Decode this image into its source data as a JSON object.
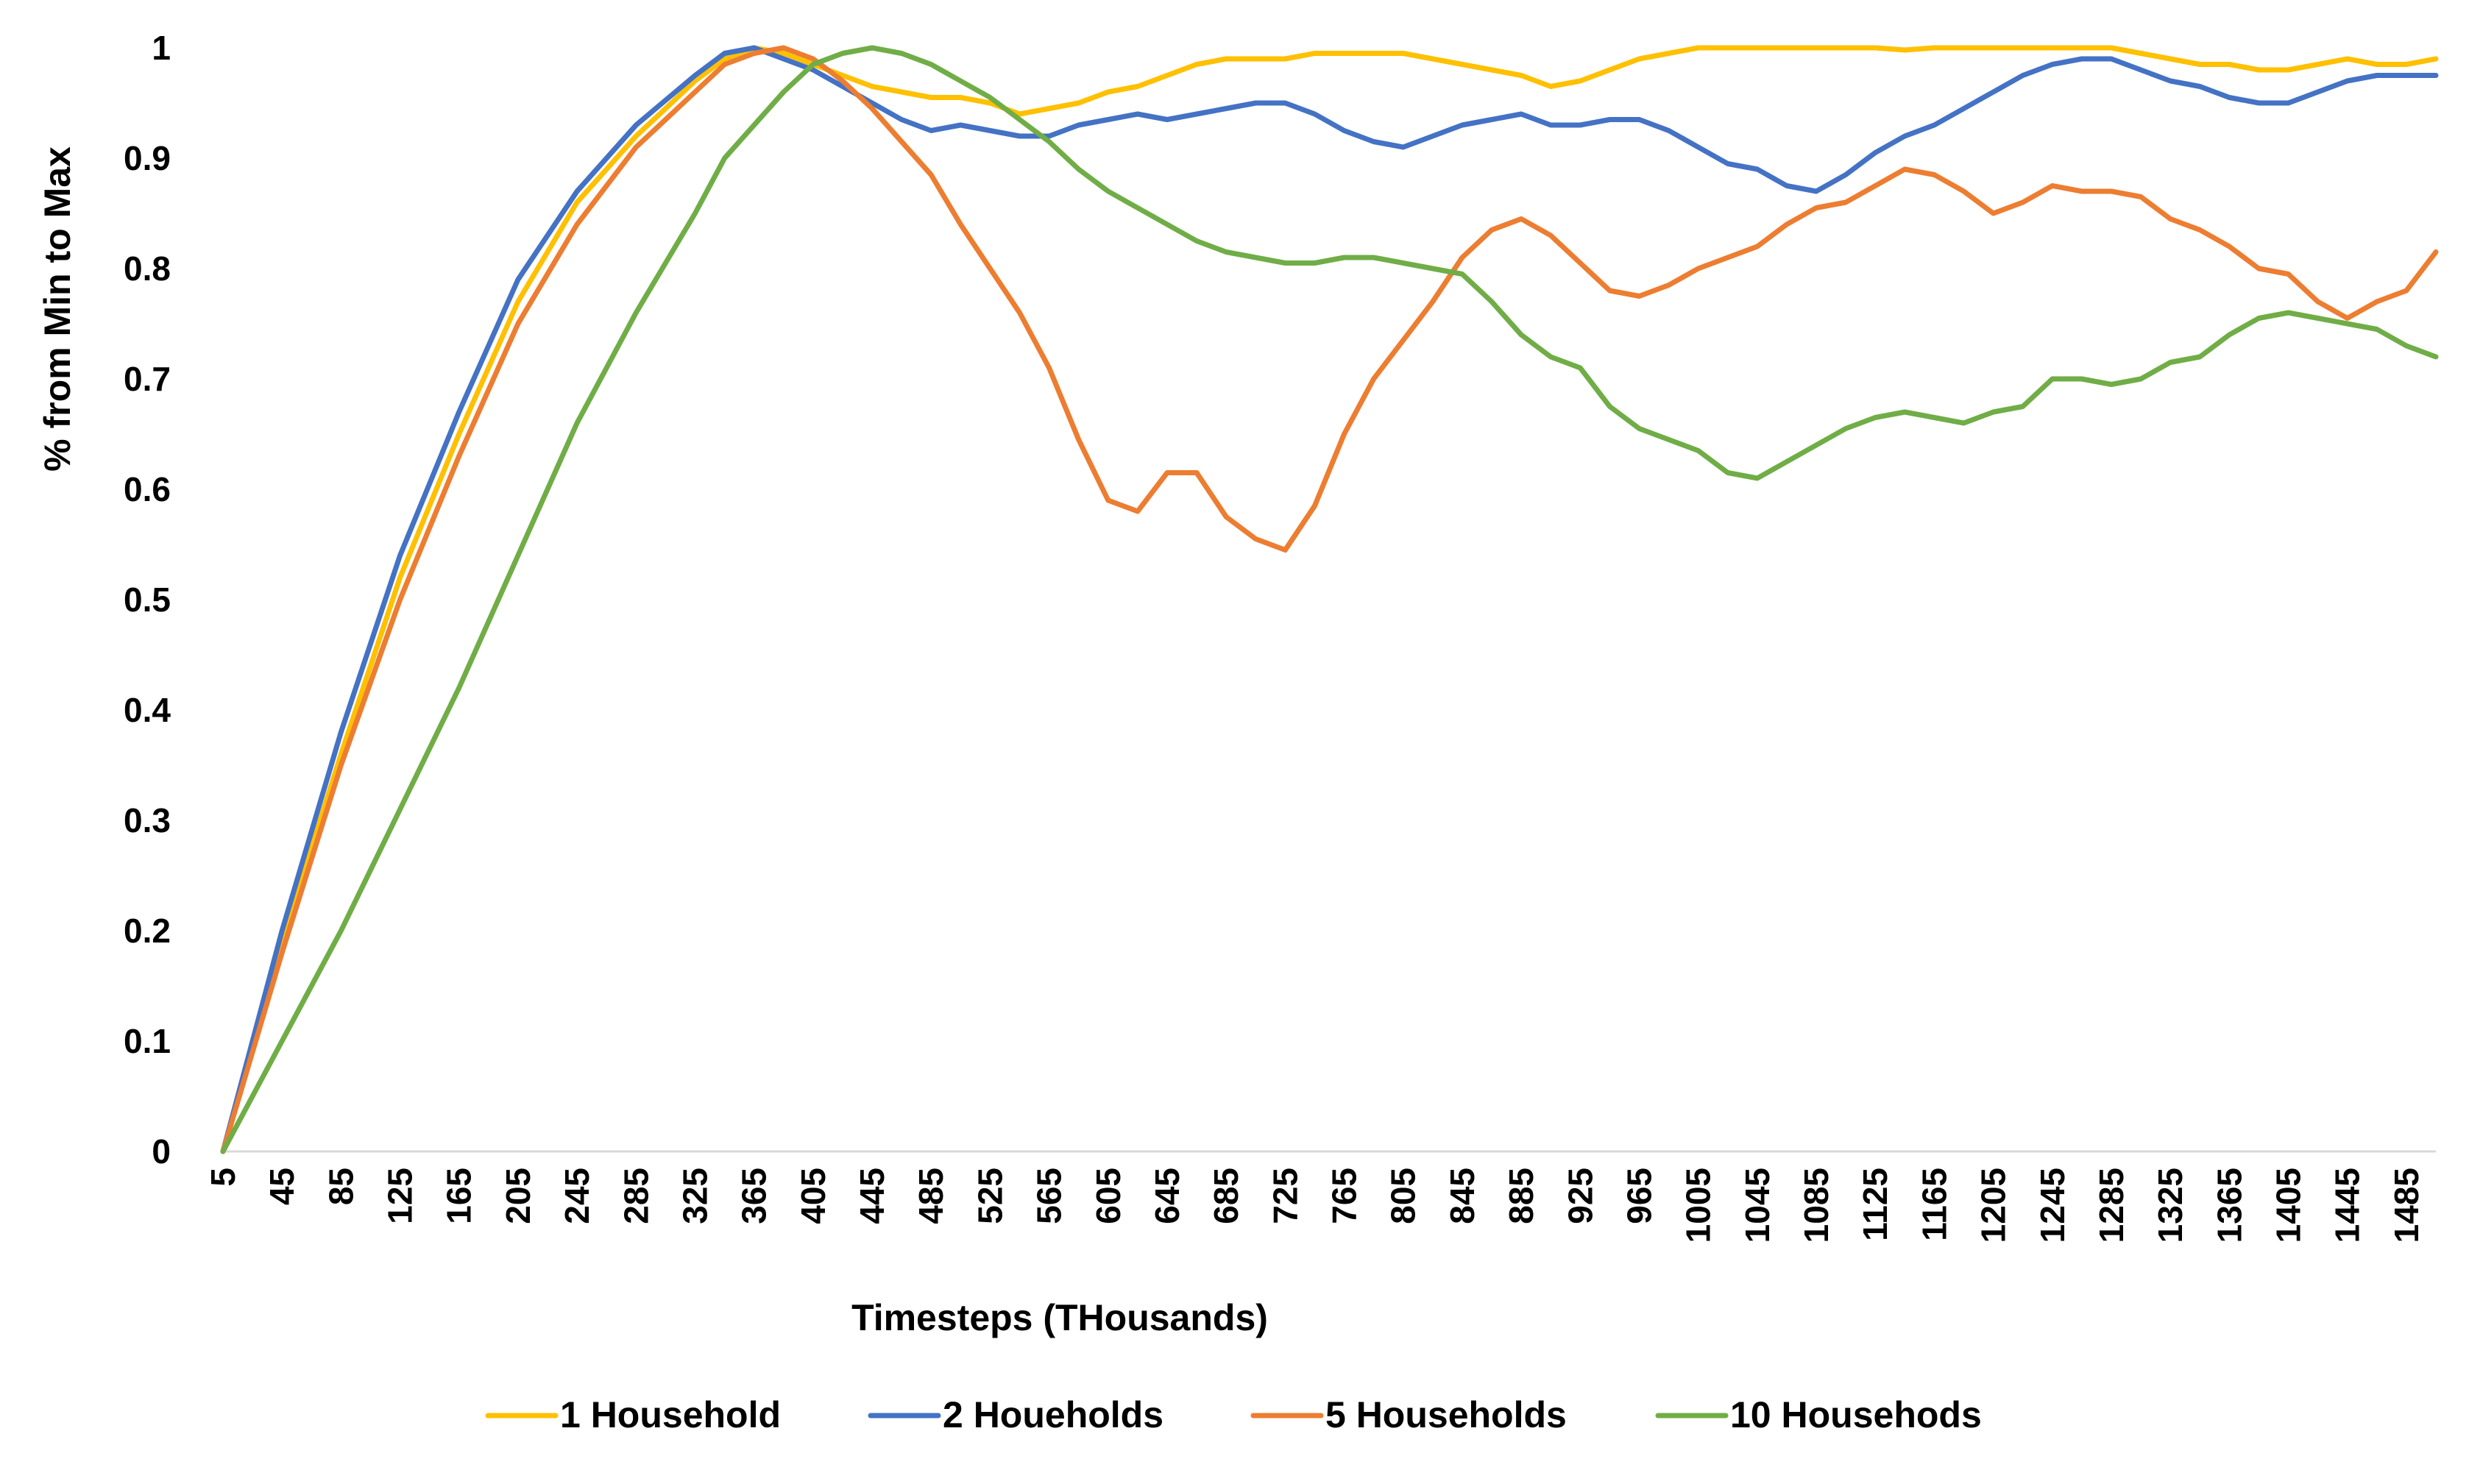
{
  "chart_data": {
    "type": "line",
    "title": "",
    "xlabel": "Timesteps (THousands)",
    "ylabel": "% from Min to Max",
    "xlim": [
      5,
      1505
    ],
    "ylim": [
      0,
      1
    ],
    "x_ticks": [
      "5",
      "45",
      "85",
      "125",
      "165",
      "205",
      "245",
      "285",
      "325",
      "365",
      "405",
      "445",
      "485",
      "525",
      "565",
      "605",
      "645",
      "685",
      "725",
      "765",
      "805",
      "845",
      "885",
      "925",
      "965",
      "1005",
      "1045",
      "1085",
      "1125",
      "1165",
      "1205",
      "1245",
      "1285",
      "1325",
      "1365",
      "1405",
      "1445",
      "1485"
    ],
    "y_ticks": [
      "0",
      "0.1",
      "0.2",
      "0.3",
      "0.4",
      "0.5",
      "0.6",
      "0.7",
      "0.8",
      "0.9",
      "1"
    ],
    "grid": false,
    "legend_position": "bottom",
    "series": [
      {
        "name": "1 Household",
        "color": "#FFC000",
        "points": [
          [
            5,
            0
          ],
          [
            45,
            0.19
          ],
          [
            85,
            0.36
          ],
          [
            125,
            0.52
          ],
          [
            165,
            0.65
          ],
          [
            205,
            0.77
          ],
          [
            245,
            0.86
          ],
          [
            285,
            0.92
          ],
          [
            325,
            0.97
          ],
          [
            345,
            0.99
          ],
          [
            365,
            1.0
          ],
          [
            385,
            0.995
          ],
          [
            405,
            0.985
          ],
          [
            425,
            0.975
          ],
          [
            445,
            0.965
          ],
          [
            465,
            0.96
          ],
          [
            485,
            0.955
          ],
          [
            505,
            0.955
          ],
          [
            525,
            0.95
          ],
          [
            545,
            0.94
          ],
          [
            565,
            0.945
          ],
          [
            585,
            0.95
          ],
          [
            605,
            0.96
          ],
          [
            625,
            0.965
          ],
          [
            645,
            0.975
          ],
          [
            665,
            0.985
          ],
          [
            685,
            0.99
          ],
          [
            705,
            0.99
          ],
          [
            725,
            0.99
          ],
          [
            745,
            0.995
          ],
          [
            765,
            0.995
          ],
          [
            785,
            0.995
          ],
          [
            805,
            0.995
          ],
          [
            825,
            0.99
          ],
          [
            845,
            0.985
          ],
          [
            865,
            0.98
          ],
          [
            885,
            0.975
          ],
          [
            905,
            0.965
          ],
          [
            925,
            0.97
          ],
          [
            945,
            0.98
          ],
          [
            965,
            0.99
          ],
          [
            985,
            0.995
          ],
          [
            1005,
            1.0
          ],
          [
            1025,
            1.0
          ],
          [
            1045,
            1.0
          ],
          [
            1065,
            1.0
          ],
          [
            1085,
            1.0
          ],
          [
            1105,
            1.0
          ],
          [
            1125,
            1.0
          ],
          [
            1145,
            0.998
          ],
          [
            1165,
            1.0
          ],
          [
            1185,
            1.0
          ],
          [
            1205,
            1.0
          ],
          [
            1225,
            1.0
          ],
          [
            1245,
            1.0
          ],
          [
            1265,
            1.0
          ],
          [
            1285,
            1.0
          ],
          [
            1305,
            0.995
          ],
          [
            1325,
            0.99
          ],
          [
            1345,
            0.985
          ],
          [
            1365,
            0.985
          ],
          [
            1385,
            0.98
          ],
          [
            1405,
            0.98
          ],
          [
            1425,
            0.985
          ],
          [
            1445,
            0.99
          ],
          [
            1465,
            0.985
          ],
          [
            1485,
            0.985
          ],
          [
            1505,
            0.99
          ]
        ]
      },
      {
        "name": "2 Houeholds",
        "color": "#4472C4",
        "points": [
          [
            5,
            0
          ],
          [
            45,
            0.2
          ],
          [
            85,
            0.38
          ],
          [
            125,
            0.54
          ],
          [
            165,
            0.67
          ],
          [
            205,
            0.79
          ],
          [
            245,
            0.87
          ],
          [
            285,
            0.93
          ],
          [
            325,
            0.975
          ],
          [
            345,
            0.995
          ],
          [
            365,
            1.0
          ],
          [
            385,
            0.99
          ],
          [
            405,
            0.98
          ],
          [
            425,
            0.965
          ],
          [
            445,
            0.95
          ],
          [
            465,
            0.935
          ],
          [
            485,
            0.925
          ],
          [
            505,
            0.93
          ],
          [
            525,
            0.925
          ],
          [
            545,
            0.92
          ],
          [
            565,
            0.92
          ],
          [
            585,
            0.93
          ],
          [
            605,
            0.935
          ],
          [
            625,
            0.94
          ],
          [
            645,
            0.935
          ],
          [
            665,
            0.94
          ],
          [
            685,
            0.945
          ],
          [
            705,
            0.95
          ],
          [
            725,
            0.95
          ],
          [
            745,
            0.94
          ],
          [
            765,
            0.925
          ],
          [
            785,
            0.915
          ],
          [
            805,
            0.91
          ],
          [
            825,
            0.92
          ],
          [
            845,
            0.93
          ],
          [
            865,
            0.935
          ],
          [
            885,
            0.94
          ],
          [
            905,
            0.93
          ],
          [
            925,
            0.93
          ],
          [
            945,
            0.935
          ],
          [
            965,
            0.935
          ],
          [
            985,
            0.925
          ],
          [
            1005,
            0.91
          ],
          [
            1025,
            0.895
          ],
          [
            1045,
            0.89
          ],
          [
            1065,
            0.875
          ],
          [
            1085,
            0.87
          ],
          [
            1105,
            0.885
          ],
          [
            1125,
            0.905
          ],
          [
            1145,
            0.92
          ],
          [
            1165,
            0.93
          ],
          [
            1185,
            0.945
          ],
          [
            1205,
            0.96
          ],
          [
            1225,
            0.975
          ],
          [
            1245,
            0.985
          ],
          [
            1265,
            0.99
          ],
          [
            1285,
            0.99
          ],
          [
            1305,
            0.98
          ],
          [
            1325,
            0.97
          ],
          [
            1345,
            0.965
          ],
          [
            1365,
            0.955
          ],
          [
            1385,
            0.95
          ],
          [
            1405,
            0.95
          ],
          [
            1425,
            0.96
          ],
          [
            1445,
            0.97
          ],
          [
            1465,
            0.975
          ],
          [
            1485,
            0.975
          ],
          [
            1505,
            0.975
          ]
        ]
      },
      {
        "name": "5 Households",
        "color": "#ED7D31",
        "points": [
          [
            5,
            0
          ],
          [
            45,
            0.18
          ],
          [
            85,
            0.35
          ],
          [
            125,
            0.5
          ],
          [
            165,
            0.63
          ],
          [
            205,
            0.75
          ],
          [
            245,
            0.84
          ],
          [
            285,
            0.91
          ],
          [
            325,
            0.96
          ],
          [
            345,
            0.985
          ],
          [
            365,
            0.995
          ],
          [
            385,
            1.0
          ],
          [
            405,
            0.99
          ],
          [
            425,
            0.97
          ],
          [
            445,
            0.945
          ],
          [
            465,
            0.915
          ],
          [
            485,
            0.885
          ],
          [
            505,
            0.84
          ],
          [
            525,
            0.8
          ],
          [
            545,
            0.76
          ],
          [
            565,
            0.71
          ],
          [
            585,
            0.645
          ],
          [
            605,
            0.59
          ],
          [
            625,
            0.58
          ],
          [
            645,
            0.615
          ],
          [
            665,
            0.615
          ],
          [
            685,
            0.575
          ],
          [
            705,
            0.555
          ],
          [
            725,
            0.545
          ],
          [
            745,
            0.585
          ],
          [
            765,
            0.65
          ],
          [
            785,
            0.7
          ],
          [
            805,
            0.735
          ],
          [
            825,
            0.77
          ],
          [
            845,
            0.81
          ],
          [
            865,
            0.835
          ],
          [
            885,
            0.845
          ],
          [
            905,
            0.83
          ],
          [
            925,
            0.805
          ],
          [
            945,
            0.78
          ],
          [
            965,
            0.775
          ],
          [
            985,
            0.785
          ],
          [
            1005,
            0.8
          ],
          [
            1025,
            0.81
          ],
          [
            1045,
            0.82
          ],
          [
            1065,
            0.84
          ],
          [
            1085,
            0.855
          ],
          [
            1105,
            0.86
          ],
          [
            1125,
            0.875
          ],
          [
            1145,
            0.89
          ],
          [
            1165,
            0.885
          ],
          [
            1185,
            0.87
          ],
          [
            1205,
            0.85
          ],
          [
            1225,
            0.86
          ],
          [
            1245,
            0.875
          ],
          [
            1265,
            0.87
          ],
          [
            1285,
            0.87
          ],
          [
            1305,
            0.865
          ],
          [
            1325,
            0.845
          ],
          [
            1345,
            0.835
          ],
          [
            1365,
            0.82
          ],
          [
            1385,
            0.8
          ],
          [
            1405,
            0.795
          ],
          [
            1425,
            0.77
          ],
          [
            1445,
            0.755
          ],
          [
            1465,
            0.77
          ],
          [
            1485,
            0.78
          ],
          [
            1505,
            0.815
          ]
        ]
      },
      {
        "name": "10 Househods",
        "color": "#70AD47",
        "points": [
          [
            5,
            0
          ],
          [
            45,
            0.1
          ],
          [
            85,
            0.2
          ],
          [
            125,
            0.31
          ],
          [
            165,
            0.42
          ],
          [
            205,
            0.54
          ],
          [
            245,
            0.66
          ],
          [
            285,
            0.76
          ],
          [
            325,
            0.85
          ],
          [
            345,
            0.9
          ],
          [
            365,
            0.93
          ],
          [
            385,
            0.96
          ],
          [
            405,
            0.985
          ],
          [
            425,
            0.995
          ],
          [
            445,
            1.0
          ],
          [
            465,
            0.995
          ],
          [
            485,
            0.985
          ],
          [
            505,
            0.97
          ],
          [
            525,
            0.955
          ],
          [
            545,
            0.935
          ],
          [
            565,
            0.915
          ],
          [
            585,
            0.89
          ],
          [
            605,
            0.87
          ],
          [
            625,
            0.855
          ],
          [
            645,
            0.84
          ],
          [
            665,
            0.825
          ],
          [
            685,
            0.815
          ],
          [
            705,
            0.81
          ],
          [
            725,
            0.805
          ],
          [
            745,
            0.805
          ],
          [
            765,
            0.81
          ],
          [
            785,
            0.81
          ],
          [
            805,
            0.805
          ],
          [
            825,
            0.8
          ],
          [
            845,
            0.795
          ],
          [
            865,
            0.77
          ],
          [
            885,
            0.74
          ],
          [
            905,
            0.72
          ],
          [
            925,
            0.71
          ],
          [
            945,
            0.675
          ],
          [
            965,
            0.655
          ],
          [
            985,
            0.645
          ],
          [
            1005,
            0.635
          ],
          [
            1025,
            0.615
          ],
          [
            1045,
            0.61
          ],
          [
            1065,
            0.625
          ],
          [
            1085,
            0.64
          ],
          [
            1105,
            0.655
          ],
          [
            1125,
            0.665
          ],
          [
            1145,
            0.67
          ],
          [
            1165,
            0.665
          ],
          [
            1185,
            0.66
          ],
          [
            1205,
            0.67
          ],
          [
            1225,
            0.675
          ],
          [
            1245,
            0.7
          ],
          [
            1265,
            0.7
          ],
          [
            1285,
            0.695
          ],
          [
            1305,
            0.7
          ],
          [
            1325,
            0.715
          ],
          [
            1345,
            0.72
          ],
          [
            1365,
            0.74
          ],
          [
            1385,
            0.755
          ],
          [
            1405,
            0.76
          ],
          [
            1425,
            0.755
          ],
          [
            1445,
            0.75
          ],
          [
            1465,
            0.745
          ],
          [
            1485,
            0.73
          ],
          [
            1505,
            0.72
          ]
        ]
      }
    ]
  }
}
